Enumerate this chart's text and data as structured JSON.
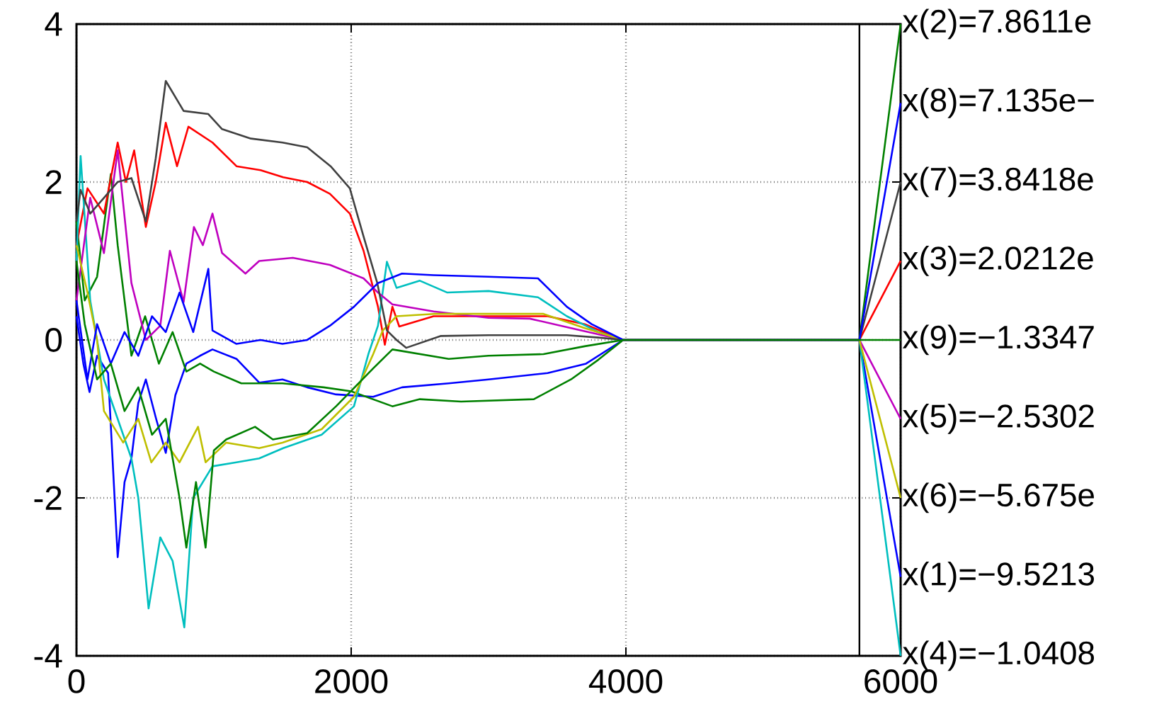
{
  "chart_data": {
    "type": "line",
    "xlim": [
      0,
      6000
    ],
    "ylim": [
      -4,
      4
    ],
    "xticks": [
      0,
      2000,
      4000,
      6000
    ],
    "yticks": [
      -4,
      -2,
      0,
      2,
      4
    ],
    "grid": true,
    "marker": "none",
    "line_style": "solid",
    "series": [
      {
        "color": "#0000ff",
        "x": [
          0,
          50,
          95,
          150,
          230,
          300,
          350,
          400,
          450,
          505,
          580,
          650,
          720,
          800,
          900,
          990,
          1165,
          1330,
          1500,
          1680,
          1890,
          2160,
          2370,
          2710,
          3000,
          3430,
          3710,
          3980,
          4100,
          5700,
          6000
        ],
        "values": [
          0.3,
          -0.3,
          -0.66,
          -0.2,
          -0.42,
          -2.75,
          -1.8,
          -1.5,
          -0.8,
          -0.5,
          -1.0,
          -1.43,
          -0.7,
          -0.3,
          -0.2,
          -0.12,
          -0.24,
          -0.54,
          -0.5,
          -0.6,
          -0.69,
          -0.72,
          -0.6,
          -0.55,
          -0.5,
          -0.42,
          -0.3,
          0,
          0,
          0,
          -3
        ]
      },
      {
        "color": "#008000",
        "x": [
          0,
          60,
          150,
          250,
          300,
          400,
          500,
          600,
          700,
          800,
          900,
          1000,
          1200,
          1500,
          1800,
          2000,
          2300,
          2500,
          2800,
          3330,
          3600,
          3800,
          3980,
          4100,
          5700,
          6000
        ],
        "values": [
          1.5,
          0.5,
          0.8,
          2.1,
          1.2,
          -0.2,
          0.3,
          -0.3,
          0.1,
          -0.4,
          -0.3,
          -0.4,
          -0.55,
          -0.55,
          -0.6,
          -0.65,
          -0.84,
          -0.75,
          -0.78,
          -0.75,
          -0.5,
          -0.25,
          0,
          0,
          0,
          4
        ]
      },
      {
        "color": "#ff0000",
        "x": [
          0,
          80,
          200,
          300,
          360,
          420,
          505,
          577,
          650,
          732,
          815,
          990,
          1165,
          1340,
          1505,
          1680,
          1845,
          1990,
          2090,
          2195,
          2245,
          2300,
          2350,
          2600,
          3000,
          3430,
          3700,
          3980,
          4100,
          5700,
          6000
        ],
        "values": [
          1.2,
          1.92,
          1.6,
          2.5,
          2.0,
          2.4,
          1.43,
          2.0,
          2.75,
          2.2,
          2.7,
          2.5,
          2.2,
          2.15,
          2.06,
          2.0,
          1.85,
          1.6,
          1.13,
          0.42,
          -0.06,
          0.42,
          0.17,
          0.3,
          0.3,
          0.3,
          0.2,
          0,
          0,
          0,
          1
        ]
      },
      {
        "color": "#00bfbf",
        "x": [
          0,
          30,
          100,
          200,
          300,
          400,
          450,
          525,
          610,
          700,
          785,
          850,
          990,
          1165,
          1330,
          1505,
          1785,
          2020,
          2125,
          2195,
          2260,
          2330,
          2500,
          2700,
          3000,
          3360,
          3570,
          3800,
          3980,
          4100,
          5700,
          6000
        ],
        "values": [
          1.0,
          2.33,
          0.5,
          -0.5,
          -1.0,
          -1.5,
          -2.0,
          -3.4,
          -2.5,
          -2.8,
          -3.64,
          -2.0,
          -1.6,
          -1.55,
          -1.5,
          -1.37,
          -1.2,
          -0.84,
          -0.18,
          0.18,
          0.99,
          0.66,
          0.75,
          0.6,
          0.62,
          0.54,
          0.3,
          0.1,
          0,
          0,
          0,
          -4
        ]
      },
      {
        "color": "#bf00bf",
        "x": [
          0,
          100,
          200,
          300,
          400,
          505,
          610,
          680,
          780,
          855,
          920,
          990,
          1060,
          1230,
          1330,
          1575,
          1845,
          2090,
          2195,
          2300,
          2600,
          3000,
          3300,
          3600,
          3980,
          4100,
          5700,
          6000
        ],
        "values": [
          0.5,
          1.8,
          1.1,
          2.4,
          0.72,
          0,
          0.18,
          1.13,
          0.48,
          1.43,
          1.2,
          1.6,
          1.1,
          0.84,
          1.0,
          1.04,
          0.95,
          0.78,
          0.6,
          0.45,
          0.36,
          0.28,
          0.27,
          0.15,
          0,
          0,
          0,
          -1
        ]
      },
      {
        "color": "#bfbf00",
        "x": [
          0,
          80,
          150,
          200,
          340,
          450,
          545,
          650,
          750,
          885,
          940,
          1090,
          1330,
          1500,
          1785,
          2020,
          2160,
          2230,
          2330,
          2600,
          3000,
          3400,
          3700,
          3980,
          4100,
          5700,
          6000
        ],
        "values": [
          1.2,
          0.6,
          0,
          -0.9,
          -1.3,
          -1.0,
          -1.55,
          -1.3,
          -1.55,
          -1.1,
          -1.55,
          -1.3,
          -1.37,
          -1.3,
          -1.13,
          -0.72,
          -0.18,
          0.12,
          0.3,
          0.33,
          0.33,
          0.33,
          0.15,
          0,
          0,
          0,
          -2
        ]
      },
      {
        "color": "#404040",
        "x": [
          0,
          30,
          100,
          200,
          300,
          400,
          505,
          577,
          650,
          780,
          960,
          1060,
          1270,
          1500,
          1680,
          1850,
          1990,
          2090,
          2190,
          2260,
          2330,
          2400,
          2650,
          3000,
          3570,
          3800,
          3980,
          4100,
          5700,
          6000
        ],
        "values": [
          1.5,
          1.9,
          1.6,
          1.8,
          2.0,
          2.05,
          1.5,
          2.3,
          3.28,
          2.9,
          2.86,
          2.67,
          2.55,
          2.5,
          2.44,
          2.2,
          1.92,
          1.31,
          0.72,
          0.12,
          0,
          -0.1,
          0.05,
          0.06,
          0.06,
          0.03,
          0,
          0,
          0,
          2
        ]
      },
      {
        "color": "#0000ff",
        "x": [
          0,
          80,
          150,
          250,
          350,
          450,
          550,
          650,
          750,
          850,
          960,
          990,
          1165,
          1340,
          1500,
          1680,
          1845,
          2020,
          2195,
          2370,
          2600,
          3000,
          3360,
          3570,
          3750,
          3980,
          4100,
          5700,
          6000
        ],
        "values": [
          0.5,
          -0.5,
          0.2,
          -0.3,
          0.1,
          -0.2,
          0.3,
          0.1,
          0.6,
          0.1,
          0.9,
          0.12,
          -0.05,
          0,
          -0.05,
          0,
          0.18,
          0.42,
          0.72,
          0.84,
          0.82,
          0.8,
          0.78,
          0.42,
          0.2,
          0,
          0,
          0,
          3
        ]
      },
      {
        "color": "#008000",
        "x": [
          0,
          60,
          150,
          250,
          350,
          450,
          550,
          650,
          750,
          800,
          870,
          940,
          1000,
          1090,
          1300,
          1430,
          1680,
          1890,
          2160,
          2300,
          2710,
          3000,
          3400,
          3700,
          3980,
          4100,
          5700,
          6000
        ],
        "values": [
          1.0,
          0.2,
          -0.5,
          -0.3,
          -0.9,
          -0.6,
          -1.2,
          -1.0,
          -2.0,
          -2.63,
          -1.8,
          -2.63,
          -1.4,
          -1.26,
          -1.1,
          -1.26,
          -1.18,
          -0.84,
          -0.36,
          -0.12,
          -0.24,
          -0.2,
          -0.18,
          -0.08,
          0,
          0,
          0,
          0
        ]
      }
    ],
    "ref_lines": [
      {
        "axis": "x",
        "value": 5700,
        "color": "#000000"
      }
    ],
    "annotations": [
      "x(2)=7.8611e",
      "x(8)=7.135e−",
      "x(7)=3.8418e",
      "x(3)=2.0212e",
      "x(9)=−1.3347",
      "x(5)=−2.5302",
      "x(6)=−5.675e",
      "x(1)=−9.5213",
      "x(4)=−1.0408"
    ]
  }
}
